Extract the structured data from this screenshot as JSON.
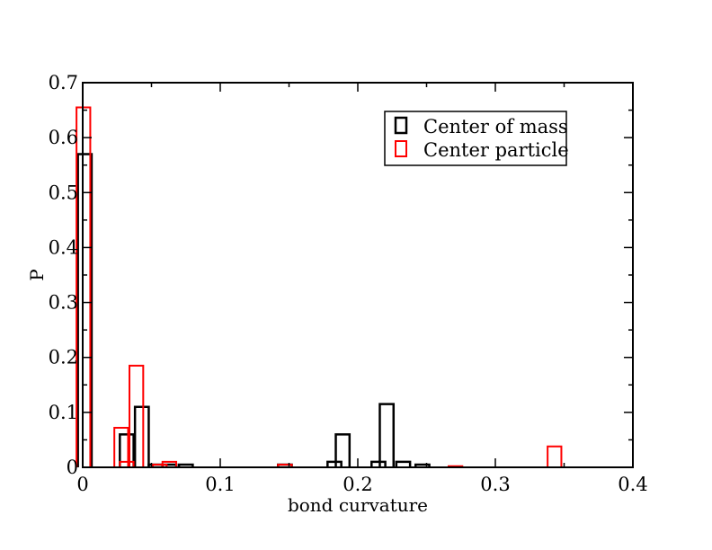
{
  "chart_data": {
    "type": "bar",
    "title": "",
    "xlabel": "bond curvature",
    "ylabel": "P",
    "xlim": [
      0,
      0.4
    ],
    "ylim": [
      0,
      0.7
    ],
    "xticks": [
      "0",
      "0.1",
      "0.2",
      "0.3",
      "0.4"
    ],
    "yticks": [
      "0",
      "0.1",
      "0.2",
      "0.3",
      "0.4",
      "0.5",
      "0.6",
      "0.7"
    ],
    "bin_width": 0.01,
    "grid": false,
    "legend_position": "top-right",
    "series": [
      {
        "name": "Center of mass",
        "color": "#000000",
        "x": [
          0.0015,
          0.032,
          0.043,
          0.053,
          0.063,
          0.075,
          0.147,
          0.183,
          0.189,
          0.215,
          0.221,
          0.233,
          0.247
        ],
        "values": [
          0.57,
          0.06,
          0.11,
          0.005,
          0.005,
          0.005,
          0.005,
          0.01,
          0.06,
          0.01,
          0.115,
          0.01,
          0.005
        ]
      },
      {
        "name": "Center particle",
        "color": "#ff0000",
        "x": [
          0.0005,
          0.028,
          0.032,
          0.039,
          0.056,
          0.063,
          0.147,
          0.271,
          0.343
        ],
        "values": [
          0.655,
          0.072,
          0.01,
          0.185,
          0.005,
          0.01,
          0.005,
          0.002,
          0.038
        ]
      }
    ]
  }
}
